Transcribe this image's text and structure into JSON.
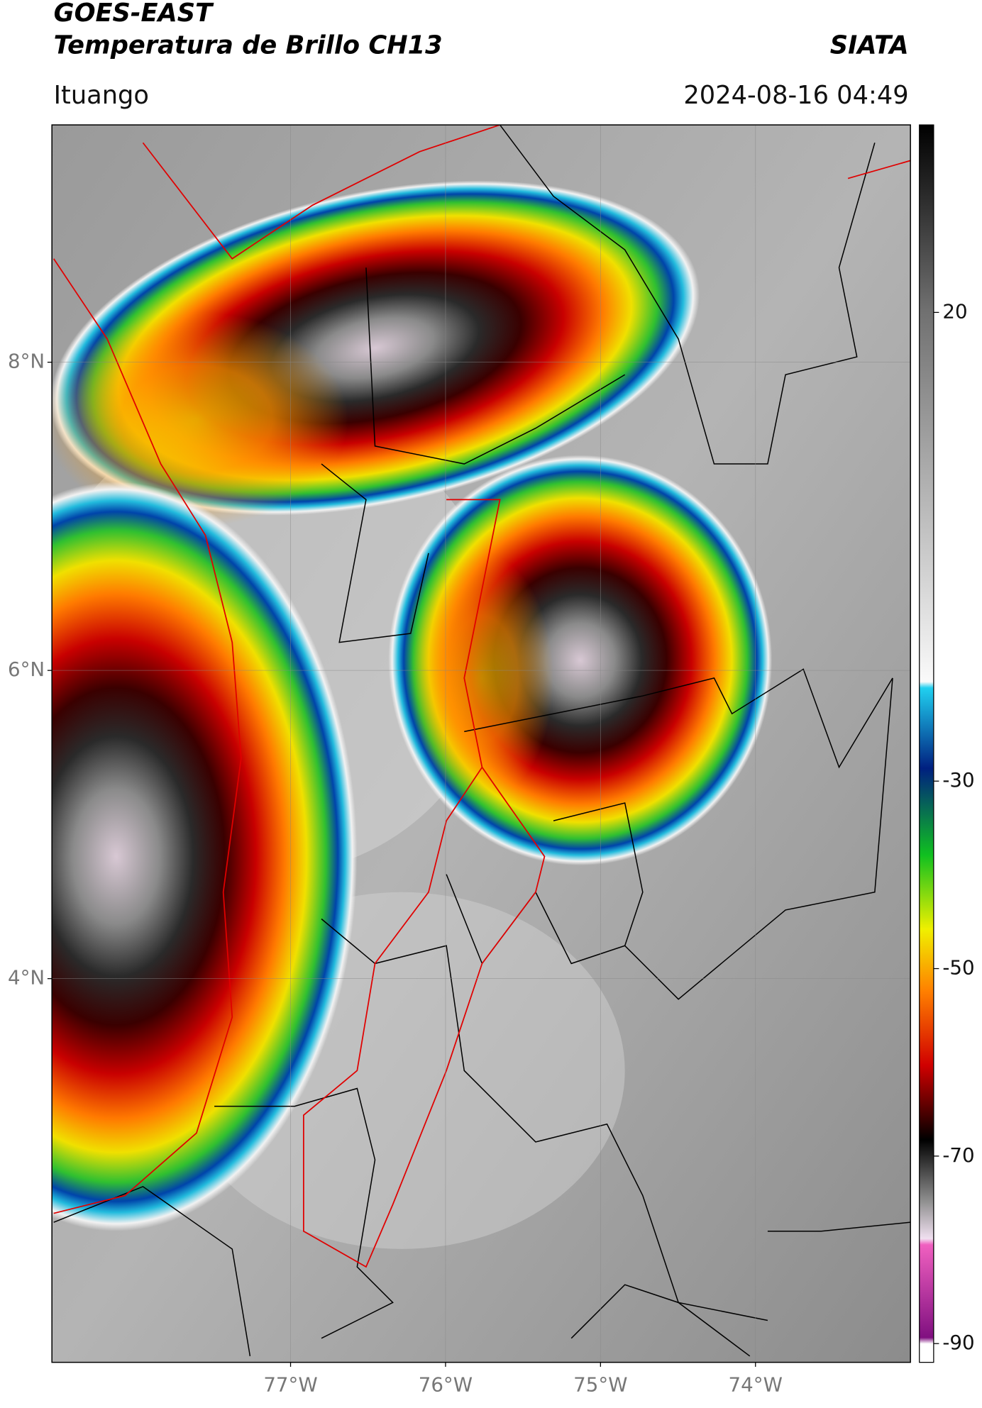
{
  "header": {
    "title_line1": "GOES-EAST",
    "title_line2": "Temperatura de Brillo CH13",
    "organization": "SIATA",
    "location": "Ituango",
    "datetime": "2024-08-16 04:49"
  },
  "map": {
    "lon_range": [
      -78.54,
      -73.0
    ],
    "lat_range": [
      1.51,
      9.54
    ],
    "lat_ticks": [
      {
        "value": 8,
        "label": "8°N"
      },
      {
        "value": 6,
        "label": "6°N"
      },
      {
        "value": 4,
        "label": "4°N"
      }
    ],
    "lon_ticks": [
      {
        "value": -77,
        "label": "77°W"
      },
      {
        "value": -76,
        "label": "76°W"
      },
      {
        "value": -75,
        "label": "75°W"
      },
      {
        "value": -74,
        "label": "74°W"
      }
    ]
  },
  "colorbar": {
    "range": [
      40,
      -92
    ],
    "ticks": [
      20,
      -30,
      -50,
      -70,
      -90
    ]
  }
}
